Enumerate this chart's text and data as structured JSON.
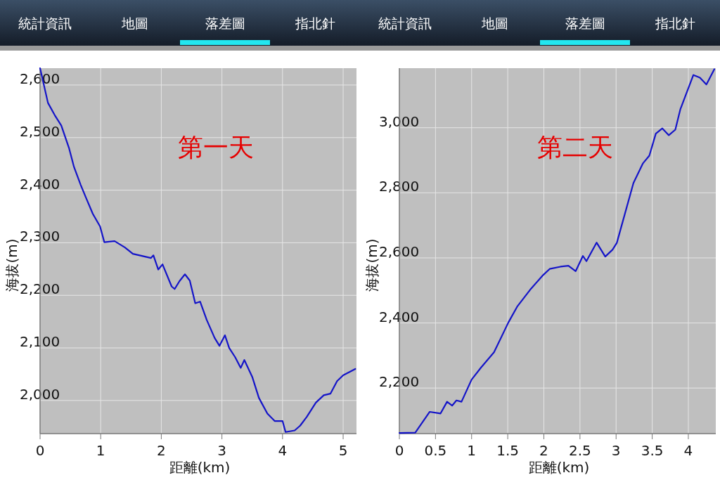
{
  "chart_data": [
    {
      "type": "line",
      "title": "第一天",
      "xlabel": "距離(km)",
      "ylabel": "海拔(m)",
      "annotations": [
        "統計資訊",
        "地圖",
        "落差圖",
        "指北針"
      ],
      "xlim": [
        0,
        5.22
      ],
      "xticks": [
        0,
        1,
        2,
        3,
        4,
        5
      ],
      "ylim": [
        1937,
        2632
      ],
      "yticks": [
        {
          "value": 2000,
          "label": "2,000"
        },
        {
          "value": 2100,
          "label": "2,100"
        },
        {
          "value": 2200,
          "label": "2,200"
        },
        {
          "value": 2300,
          "label": "2,300"
        },
        {
          "value": 2400,
          "label": "2,400"
        },
        {
          "value": 2500,
          "label": "2,500"
        },
        {
          "value": 2600,
          "label": "2,600"
        }
      ],
      "grid": true,
      "series": [
        {
          "color": "#1414c8",
          "x": [
            0,
            0.13,
            0.24,
            0.35,
            0.48,
            0.56,
            0.67,
            0.76,
            0.87,
            0.99,
            1.06,
            1.23,
            1.4,
            1.53,
            1.83,
            1.87,
            1.95,
            2.02,
            2.17,
            2.22,
            2.3,
            2.39,
            2.47,
            2.56,
            2.64,
            2.75,
            2.88,
            2.96,
            3.05,
            3.12,
            3.22,
            3.31,
            3.37,
            3.5,
            3.61,
            3.75,
            3.87,
            4.0,
            4.05,
            4.2,
            4.29,
            4.4,
            4.55,
            4.68,
            4.79,
            4.9,
            5.0,
            5.2
          ],
          "values": [
            2632,
            2566,
            2543,
            2523,
            2479,
            2444,
            2410,
            2385,
            2355,
            2331,
            2301,
            2303,
            2291,
            2279,
            2271,
            2276,
            2249,
            2259,
            2217,
            2212,
            2227,
            2240,
            2228,
            2185,
            2188,
            2153,
            2119,
            2104,
            2124,
            2100,
            2082,
            2062,
            2077,
            2045,
            2005,
            1975,
            1961,
            1961,
            1940,
            1943,
            1952,
            1969,
            1996,
            2010,
            2013,
            2037,
            2048,
            2060
          ]
        }
      ]
    },
    {
      "type": "line",
      "title": "第二天",
      "xlabel": "距離(km)",
      "ylabel": "海拔(m)",
      "annotations": [
        "統計資訊",
        "地圖",
        "落差圖",
        "指北針"
      ],
      "xlim": [
        0,
        4.38
      ],
      "xticks": [
        0,
        0.5,
        1,
        1.5,
        2,
        2.5,
        3,
        3.5,
        4
      ],
      "ylim": [
        2060,
        3183
      ],
      "yticks": [
        {
          "value": 2200,
          "label": "2,200"
        },
        {
          "value": 2400,
          "label": "2,400"
        },
        {
          "value": 2600,
          "label": "2,600"
        },
        {
          "value": 2800,
          "label": "2,800"
        },
        {
          "value": 3000,
          "label": "3,000"
        }
      ],
      "grid": true,
      "series": [
        {
          "color": "#1414c8",
          "x": [
            0,
            0.22,
            0.42,
            0.57,
            0.66,
            0.73,
            0.79,
            0.86,
            1.0,
            1.13,
            1.31,
            1.51,
            1.63,
            1.81,
            1.98,
            2.08,
            2.23,
            2.34,
            2.44,
            2.54,
            2.59,
            2.73,
            2.85,
            2.95,
            3.01,
            3.24,
            3.37,
            3.46,
            3.55,
            3.64,
            3.73,
            3.82,
            3.89,
            4.07,
            4.16,
            4.25,
            4.36
          ],
          "values": [
            2062,
            2063,
            2127,
            2122,
            2158,
            2146,
            2162,
            2158,
            2226,
            2263,
            2310,
            2402,
            2450,
            2502,
            2545,
            2566,
            2573,
            2576,
            2559,
            2606,
            2590,
            2647,
            2604,
            2625,
            2646,
            2830,
            2890,
            2914,
            2982,
            2998,
            2977,
            2994,
            3057,
            3162,
            3154,
            3133,
            3180
          ]
        }
      ]
    }
  ]
}
